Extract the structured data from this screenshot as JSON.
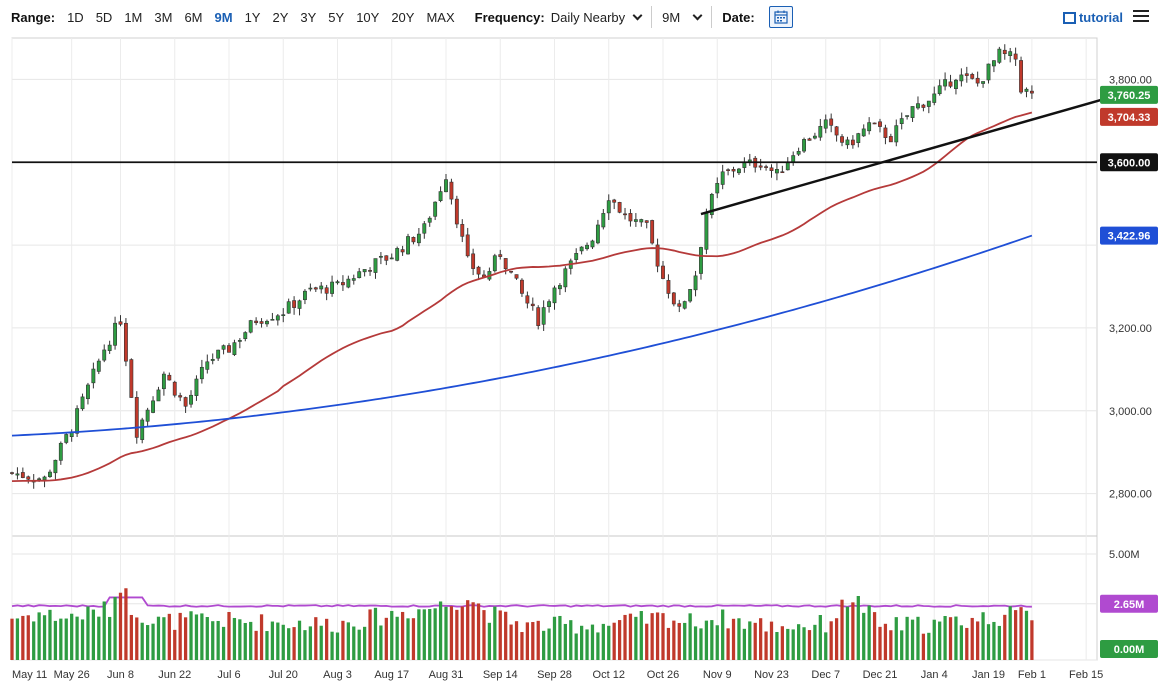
{
  "toolbar": {
    "range_label": "Range:",
    "ranges": [
      "1D",
      "5D",
      "1M",
      "3M",
      "6M",
      "9M",
      "1Y",
      "2Y",
      "3Y",
      "5Y",
      "10Y",
      "20Y",
      "MAX"
    ],
    "active_range": "9M",
    "frequency_label": "Frequency:",
    "frequency_value": "Daily Nearby",
    "period_value": "9M",
    "date_label": "Date:",
    "tutorial_label": "tutorial"
  },
  "chart_data": {
    "type": "candlestick",
    "price_axis": {
      "ticks": [
        "3,800.00",
        "3,200.00",
        "3,000.00",
        "2,800.00"
      ],
      "tick_values": [
        3800,
        3200,
        3000,
        2800
      ],
      "range": [
        2700,
        3900
      ]
    },
    "volume_axis": {
      "ticks": [
        "5.00M"
      ],
      "tick_values": [
        5
      ],
      "range": [
        0,
        5.8
      ]
    },
    "x_labels": [
      "May 11",
      "May 26",
      "Jun 8",
      "Jun 22",
      "Jul 6",
      "Jul 20",
      "Aug 3",
      "Aug 17",
      "Aug 31",
      "Sep 14",
      "Sep 28",
      "Oct 12",
      "Oct 26",
      "Nov 9",
      "Nov 23",
      "Dec 7",
      "Dec 21",
      "Jan 4",
      "Jan 19",
      "Feb 1",
      "Feb 15"
    ],
    "x_label_positions": [
      0,
      11,
      20,
      30,
      40,
      50,
      60,
      70,
      80,
      90,
      100,
      110,
      120,
      130,
      140,
      150,
      160,
      170,
      180,
      188,
      198
    ],
    "price_badges": [
      {
        "label": "3,760.25",
        "value": 3760.25,
        "color": "#2e9c42"
      },
      {
        "label": "3,704.33",
        "value": 3704.33,
        "color": "#c0392b"
      },
      {
        "label": "3,600.00",
        "value": 3600,
        "color": "#111111"
      },
      {
        "label": "3,422.96",
        "value": 3422.96,
        "color": "#1f4fd6"
      }
    ],
    "volume_badges": [
      {
        "label": "2.65M",
        "value": 2.65,
        "color": "#b04ad0"
      },
      {
        "label": "0.00M",
        "value": 0,
        "color": "#2e9c42"
      }
    ],
    "horizontal_line": 3600,
    "trendline": {
      "from": [
        127,
        3475
      ],
      "to": [
        206,
        3770
      ]
    },
    "anchors": [
      [
        0,
        2850
      ],
      [
        6,
        2835
      ],
      [
        11,
        2960
      ],
      [
        17,
        3150
      ],
      [
        20,
        3220
      ],
      [
        23,
        2950
      ],
      [
        28,
        3090
      ],
      [
        32,
        3010
      ],
      [
        36,
        3120
      ],
      [
        40,
        3150
      ],
      [
        45,
        3220
      ],
      [
        50,
        3240
      ],
      [
        55,
        3290
      ],
      [
        60,
        3300
      ],
      [
        66,
        3350
      ],
      [
        70,
        3375
      ],
      [
        76,
        3440
      ],
      [
        80,
        3570
      ],
      [
        84,
        3360
      ],
      [
        87,
        3320
      ],
      [
        90,
        3380
      ],
      [
        94,
        3280
      ],
      [
        97,
        3220
      ],
      [
        100,
        3300
      ],
      [
        104,
        3370
      ],
      [
        107,
        3420
      ],
      [
        110,
        3520
      ],
      [
        113,
        3470
      ],
      [
        117,
        3440
      ],
      [
        120,
        3320
      ],
      [
        123,
        3240
      ],
      [
        126,
        3330
      ],
      [
        128,
        3480
      ],
      [
        131,
        3570
      ],
      [
        134,
        3590
      ],
      [
        138,
        3600
      ],
      [
        141,
        3570
      ],
      [
        145,
        3640
      ],
      [
        150,
        3690
      ],
      [
        154,
        3640
      ],
      [
        158,
        3690
      ],
      [
        162,
        3660
      ],
      [
        166,
        3730
      ],
      [
        170,
        3760
      ],
      [
        174,
        3810
      ],
      [
        178,
        3790
      ],
      [
        182,
        3860
      ],
      [
        185,
        3850
      ],
      [
        186,
        3780
      ],
      [
        188,
        3760
      ]
    ],
    "volume_anchors": [
      [
        0,
        2.0
      ],
      [
        5,
        2.2
      ],
      [
        10,
        2.0
      ],
      [
        18,
        2.4
      ],
      [
        20,
        3.6
      ],
      [
        22,
        2.5
      ],
      [
        26,
        1.8
      ],
      [
        35,
        1.9
      ],
      [
        45,
        1.8
      ],
      [
        60,
        1.7
      ],
      [
        80,
        2.6
      ],
      [
        84,
        3.0
      ],
      [
        88,
        2.2
      ],
      [
        95,
        1.6
      ],
      [
        110,
        1.7
      ],
      [
        120,
        2.0
      ],
      [
        125,
        1.8
      ],
      [
        130,
        2.0
      ],
      [
        140,
        1.6
      ],
      [
        150,
        1.7
      ],
      [
        155,
        3.0
      ],
      [
        160,
        1.6
      ],
      [
        170,
        1.7
      ],
      [
        180,
        2.0
      ],
      [
        188,
        2.2
      ]
    ],
    "volume_ma": {
      "base": 2.55,
      "spike_window": [
        18,
        24
      ],
      "spike_value": 2.95
    },
    "ma50": {
      "start": 2830,
      "window": 50
    },
    "ma200": {
      "start": 2940,
      "end": 3422.96
    }
  }
}
